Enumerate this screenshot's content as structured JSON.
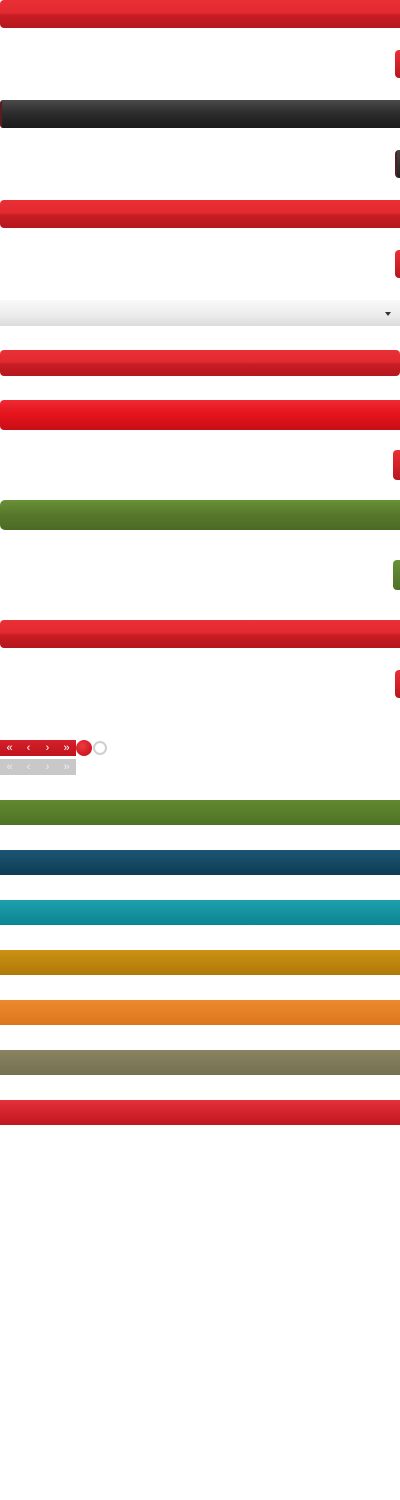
{
  "pager": {
    "active": {
      "first": "«",
      "prev": "‹",
      "next": "›",
      "last": "»"
    },
    "disabled": {
      "first": "«",
      "prev": "‹",
      "next": "›",
      "last": "»"
    }
  },
  "radio": {
    "selected_index": 0
  },
  "dropdown": {
    "icon": "caret-down-icon"
  },
  "colors": {
    "red": "#e32a31",
    "dark": "#2d2d2d",
    "light_gray": "#ebebeb",
    "green": "#56782b",
    "navy": "#0e3c55",
    "teal": "#0b8591",
    "gold": "#b07907",
    "orange": "#dc761c",
    "olive": "#747050"
  }
}
